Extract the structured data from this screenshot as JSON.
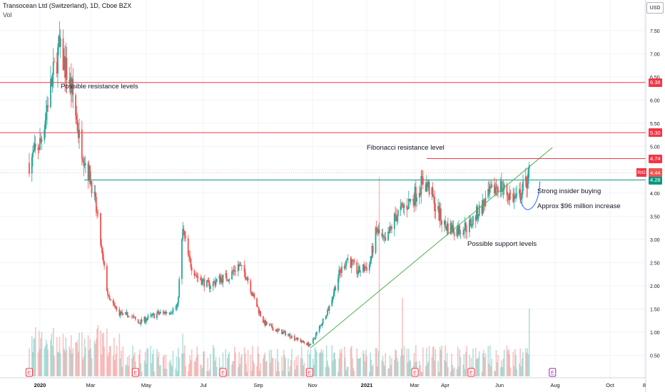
{
  "header": {
    "title": "Transocean Ltd (Switzerland), 1D, Cboe BZX",
    "volume_label": "Vol",
    "currency": "USD"
  },
  "ticker_tag": "RIG",
  "annotations": {
    "resistance": "Possible resistance levels",
    "fibonacci": "Fibonacci resistance level",
    "insider": "Strong insider buying",
    "increase": "Approx $96 million increase",
    "support": "Possible support levels"
  },
  "colors": {
    "up": "#26a69a",
    "down": "#ef5350",
    "resistance_line": "#f23645",
    "support_line": "#089981",
    "trendline": "#4caf50",
    "arc": "#2962ff"
  },
  "chart_data": {
    "type": "candlestick",
    "title": "Transocean Ltd (Switzerland), 1D, Cboe BZX",
    "ylim": [
      0.25,
      7.85
    ],
    "y_ticks": [
      "7.50",
      "7.00",
      "6.50",
      "6.00",
      "5.50",
      "5.00",
      "4.50",
      "4.00",
      "3.50",
      "3.00",
      "2.50",
      "2.00",
      "1.50",
      "1.00",
      "0.50"
    ],
    "x_ticks": [
      "2020",
      "Mar",
      "May",
      "Jul",
      "Sep",
      "Nov",
      "2021",
      "Mar",
      "Apr",
      "Jun",
      "Aug",
      "Oct",
      "8"
    ],
    "horizontal_levels": [
      {
        "value": 6.38,
        "label": "6.38",
        "kind": "resistance"
      },
      {
        "value": 5.3,
        "label": "5.30",
        "kind": "resistance"
      },
      {
        "value": 4.74,
        "label": "4.74",
        "kind": "fibonacci"
      },
      {
        "value": 4.28,
        "label": "4.28",
        "kind": "support"
      }
    ],
    "last_price": {
      "value": 4.44,
      "label": "4.44"
    },
    "trendline": [
      {
        "date": "2020-10-30",
        "price": 0.66
      },
      {
        "date": "2021-07-28",
        "price": 4.98
      }
    ],
    "earnings_markers": [
      "2019-12-20",
      "2020-04-17",
      "2020-07-24",
      "2020-10-29",
      "2021-02-24",
      "2021-04-28",
      "2021-07-28"
    ],
    "price_path": [
      [
        "2019-12-20",
        4.65
      ],
      [
        "2020-01-02",
        5.1
      ],
      [
        "2020-01-10",
        6.0
      ],
      [
        "2020-01-22",
        7.1
      ],
      [
        "2020-01-28",
        6.8
      ],
      [
        "2020-02-06",
        6.2
      ],
      [
        "2020-02-14",
        5.2
      ],
      [
        "2020-02-22",
        4.6
      ],
      [
        "2020-02-28",
        4.2
      ],
      [
        "2020-03-06",
        3.4
      ],
      [
        "2020-03-11",
        2.6
      ],
      [
        "2020-03-18",
        1.7
      ],
      [
        "2020-03-26",
        1.5
      ],
      [
        "2020-04-03",
        1.35
      ],
      [
        "2020-04-10",
        1.4
      ],
      [
        "2020-04-20",
        1.2
      ],
      [
        "2020-04-30",
        1.3
      ],
      [
        "2020-05-12",
        1.4
      ],
      [
        "2020-05-25",
        1.45
      ],
      [
        "2020-06-03",
        1.55
      ],
      [
        "2020-06-09",
        3.2
      ],
      [
        "2020-06-16",
        2.55
      ],
      [
        "2020-06-25",
        2.2
      ],
      [
        "2020-07-08",
        2.0
      ],
      [
        "2020-07-20",
        2.15
      ],
      [
        "2020-07-31",
        2.2
      ],
      [
        "2020-08-10",
        2.45
      ],
      [
        "2020-08-20",
        2.2
      ],
      [
        "2020-08-28",
        1.7
      ],
      [
        "2020-09-08",
        1.2
      ],
      [
        "2020-09-21",
        1.05
      ],
      [
        "2020-10-05",
        0.95
      ],
      [
        "2020-10-20",
        0.8
      ],
      [
        "2020-10-30",
        0.72
      ],
      [
        "2020-11-09",
        1.1
      ],
      [
        "2020-11-20",
        1.55
      ],
      [
        "2020-11-30",
        2.2
      ],
      [
        "2020-12-10",
        2.6
      ],
      [
        "2020-12-22",
        2.3
      ],
      [
        "2021-01-04",
        2.45
      ],
      [
        "2021-01-12",
        3.2
      ],
      [
        "2021-01-22",
        2.9
      ],
      [
        "2021-02-02",
        3.5
      ],
      [
        "2021-02-12",
        3.7
      ],
      [
        "2021-02-22",
        3.9
      ],
      [
        "2021-03-05",
        4.25
      ],
      [
        "2021-03-12",
        4.1
      ],
      [
        "2021-03-19",
        3.7
      ],
      [
        "2021-03-29",
        3.3
      ],
      [
        "2021-04-12",
        3.2
      ],
      [
        "2021-04-26",
        3.3
      ],
      [
        "2021-05-06",
        3.6
      ],
      [
        "2021-05-17",
        3.9
      ],
      [
        "2021-05-28",
        4.2
      ],
      [
        "2021-06-07",
        4.0
      ],
      [
        "2021-06-18",
        3.85
      ],
      [
        "2021-06-28",
        4.2
      ],
      [
        "2021-07-02",
        4.44
      ]
    ]
  }
}
